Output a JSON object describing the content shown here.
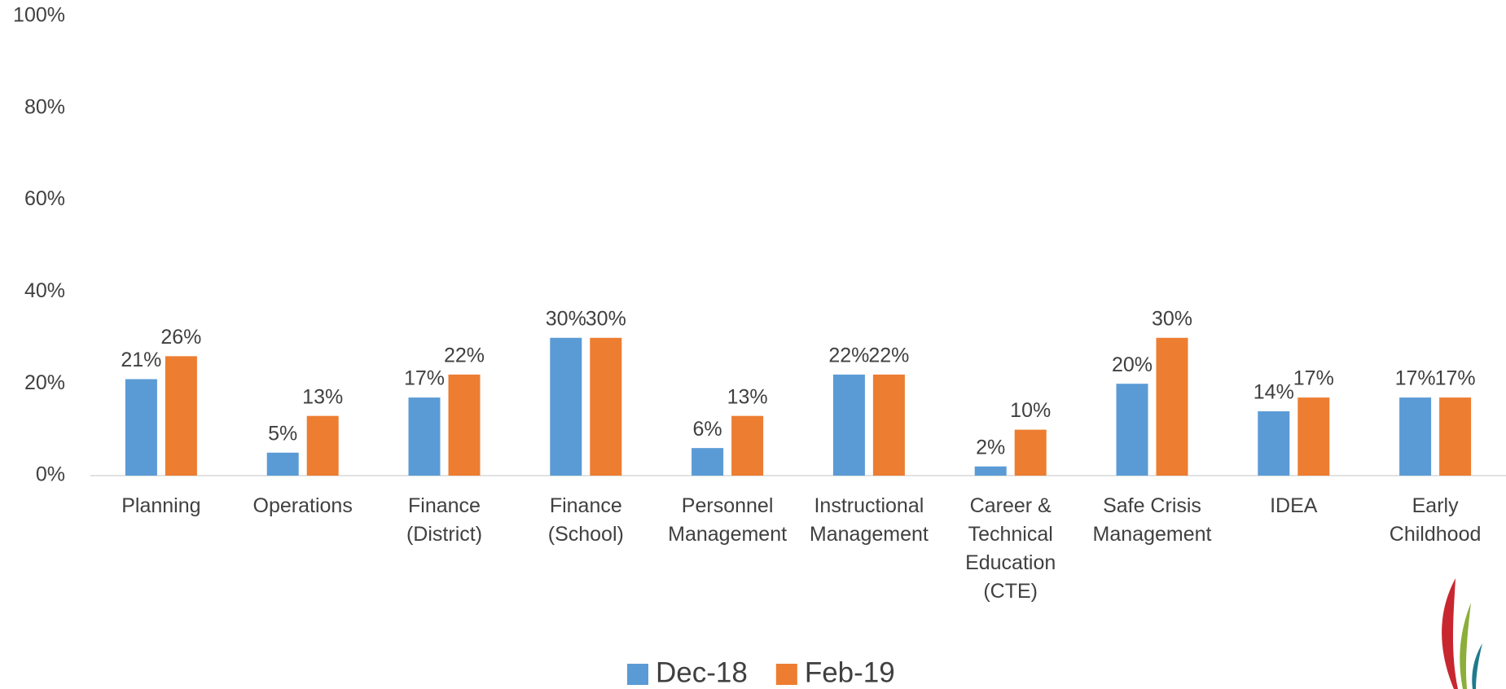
{
  "chart_data": {
    "type": "bar",
    "categories": [
      "Planning",
      "Operations",
      "Finance\n(District)",
      "Finance\n(School)",
      "Personnel\nManagement",
      "Instructional\nManagement",
      "Career &\nTechnical\nEducation\n(CTE)",
      "Safe Crisis\nManagement",
      "IDEA",
      "Early\nChildhood"
    ],
    "series": [
      {
        "name": "Dec-18",
        "color": "#5b9bd5",
        "values": [
          21,
          5,
          17,
          30,
          6,
          22,
          2,
          20,
          14,
          17
        ],
        "value_labels": [
          "21%",
          "5%",
          "17%",
          "30%",
          "6%",
          "22%",
          "2%",
          "20%",
          "14%",
          "17%"
        ]
      },
      {
        "name": "Feb-19",
        "color": "#ed7d31",
        "values": [
          26,
          13,
          22,
          30,
          13,
          22,
          10,
          30,
          17,
          17
        ],
        "value_labels": [
          "26%",
          "13%",
          "22%",
          "30%",
          "13%",
          "22%",
          "10%",
          "30%",
          "17%",
          "17%"
        ]
      }
    ],
    "ylim": [
      0,
      100
    ],
    "yticks": [
      {
        "value": 0,
        "label": "0%"
      },
      {
        "value": 20,
        "label": "20%"
      },
      {
        "value": 40,
        "label": "40%"
      },
      {
        "value": 60,
        "label": "60%"
      },
      {
        "value": 80,
        "label": "80%"
      },
      {
        "value": 100,
        "label": "100%"
      }
    ],
    "grid": false,
    "legend": "bottom"
  }
}
